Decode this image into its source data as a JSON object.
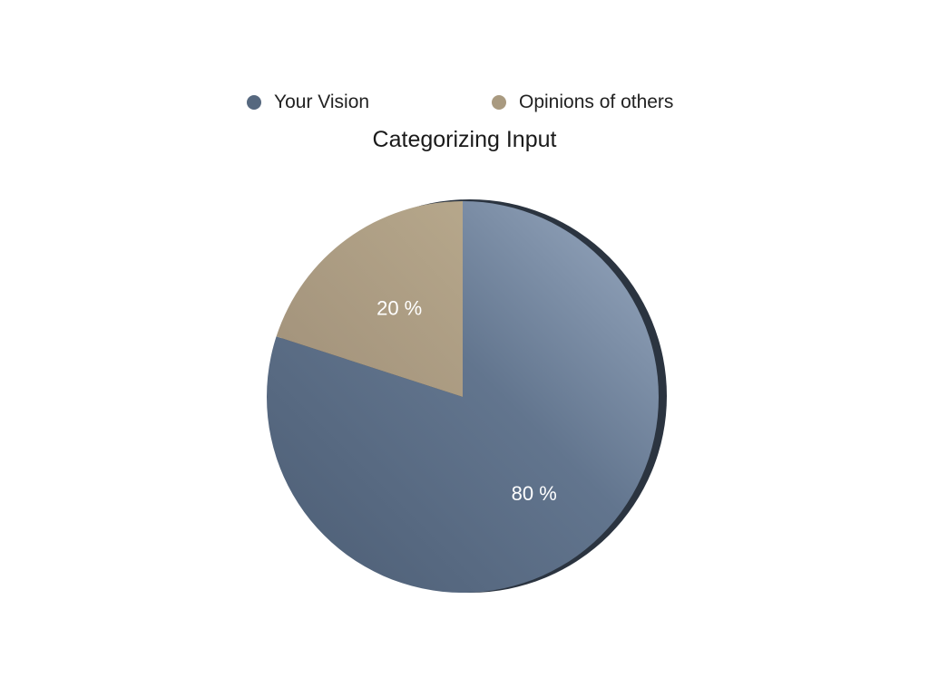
{
  "chart_data": {
    "type": "pie",
    "title": "Categorizing Input",
    "categories": [
      "Your Vision",
      "Opinions of others"
    ],
    "values": [
      80,
      20
    ],
    "value_labels": [
      "80 %",
      "20 %"
    ],
    "colors": [
      "#56687f",
      "#a99a80"
    ],
    "legend_position": "top"
  }
}
